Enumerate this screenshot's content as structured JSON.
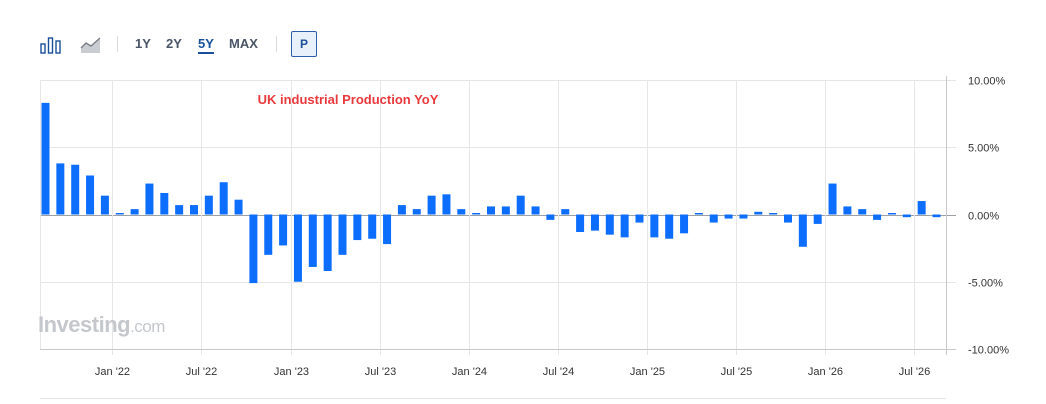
{
  "toolbar": {
    "icons": [
      "bar-chart-icon",
      "area-chart-icon"
    ],
    "ranges": [
      "1Y",
      "2Y",
      "5Y",
      "MAX"
    ],
    "active_range": "5Y",
    "p_label": "P"
  },
  "watermark": {
    "brand": "Investing",
    "suffix": ".com"
  },
  "colors": {
    "bar": "#0d6efd",
    "title": "#e8393d",
    "grid": "#e6e6e6",
    "axis": "#c8c8c8"
  },
  "chart_data": {
    "type": "bar",
    "title": "UK industrial Production YoY",
    "xlabel": "",
    "ylabel": "",
    "ylim": [
      -10,
      10
    ],
    "y_ticks": [
      10,
      5,
      0,
      -5,
      -10
    ],
    "y_tick_labels": [
      "10.00%",
      "5.00%",
      "0.00%",
      "-5.00%",
      "-10.00%"
    ],
    "x_tick_labels": [
      "Jan '22",
      "Jul '22",
      "Jan '23",
      "Jul '23",
      "Jan '24",
      "Jul '24",
      "Jan '25",
      "Jul '25",
      "Jan '26",
      "Jul '26"
    ],
    "x_tick_index": [
      4.5,
      10.5,
      16.5,
      22.5,
      28.5,
      34.5,
      40.5,
      46.5,
      52.5,
      58.5
    ],
    "grid": true,
    "legend": "none",
    "values": [
      8.3,
      3.8,
      3.7,
      2.9,
      1.4,
      0.1,
      0.4,
      2.3,
      1.6,
      0.7,
      0.7,
      1.4,
      2.4,
      1.1,
      -5.1,
      -3.0,
      -2.3,
      -5.0,
      -3.9,
      -4.2,
      -3.0,
      -1.9,
      -1.8,
      -2.2,
      0.7,
      0.4,
      1.4,
      1.5,
      0.4,
      0.0,
      0.6,
      0.6,
      1.4,
      0.6,
      -0.4,
      0.4,
      -1.3,
      -1.2,
      -1.5,
      -1.7,
      -0.6,
      -1.7,
      -1.8,
      -1.4,
      0.1,
      -0.6,
      -0.3,
      -0.3,
      0.2,
      0.1,
      -0.6,
      -2.4,
      -0.7,
      2.3,
      0.6,
      0.4,
      -0.4,
      0.0,
      -0.2,
      1.0,
      -0.2
    ]
  }
}
